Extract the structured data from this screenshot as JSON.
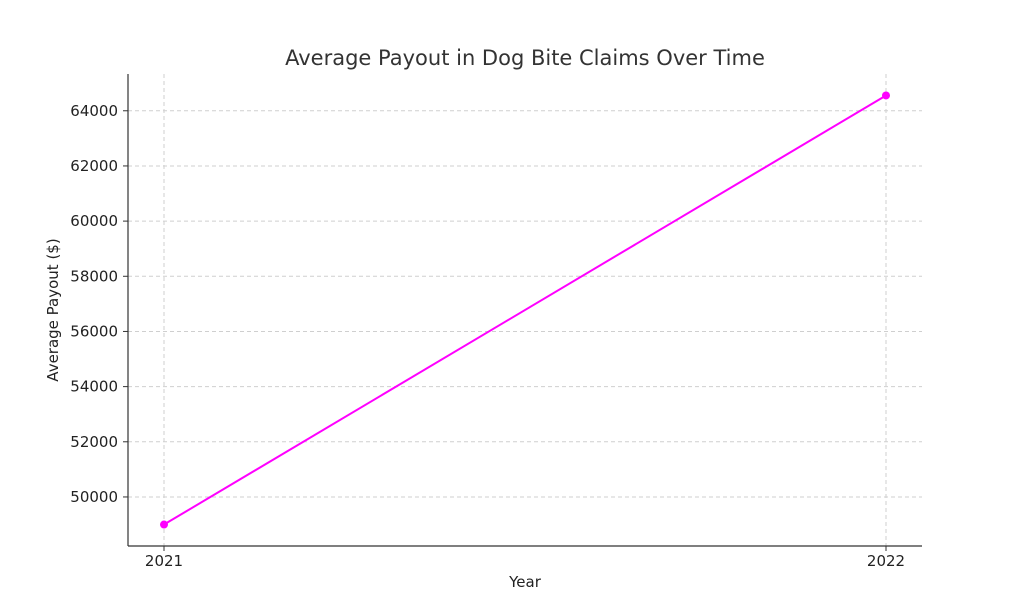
{
  "chart_data": {
    "type": "line",
    "title": "Average Payout in Dog Bite Claims Over Time",
    "xlabel": "Year",
    "ylabel": "Average Payout ($)",
    "categories": [
      "2021",
      "2022"
    ],
    "series": [
      {
        "values": [
          49000,
          64555
        ],
        "color": "#ff00ff"
      }
    ],
    "y_ticks": [
      50000,
      52000,
      54000,
      56000,
      58000,
      60000,
      62000,
      64000
    ],
    "ylim": [
      48222,
      65333
    ],
    "grid": true
  }
}
